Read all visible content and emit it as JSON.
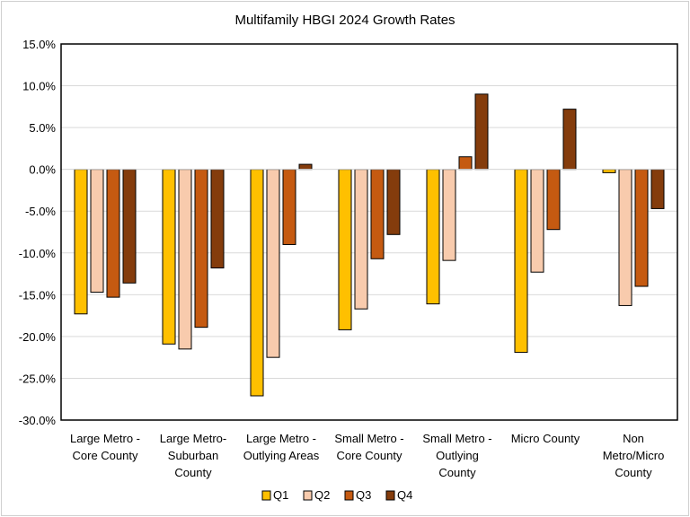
{
  "chart_data": {
    "type": "bar",
    "title": "Multifamily HBGI 2024 Growth Rates",
    "xlabel": "",
    "ylabel": "",
    "ylim": [
      -30,
      15
    ],
    "yticks": [
      15,
      10,
      5,
      0,
      -5,
      -10,
      -15,
      -20,
      -25,
      -30
    ],
    "ytick_labels": [
      "15.0%",
      "10.0%",
      "5.0%",
      "0.0%",
      "-5.0%",
      "-10.0%",
      "-15.0%",
      "-20.0%",
      "-25.0%",
      "-30.0%"
    ],
    "grid": true,
    "legend_position": "bottom",
    "categories": [
      [
        "Large Metro -",
        "Core County"
      ],
      [
        "Large Metro-",
        "Suburban",
        "County"
      ],
      [
        "Large Metro -",
        "Outlying Areas"
      ],
      [
        "Small Metro -",
        "Core County"
      ],
      [
        "Small Metro -",
        "Outlying",
        "County"
      ],
      [
        "Micro County"
      ],
      [
        "Non",
        "Metro/Micro",
        "County"
      ]
    ],
    "series": [
      {
        "name": "Q1",
        "color": "#FFC000",
        "values": [
          -17.3,
          -20.9,
          -27.1,
          -19.2,
          -16.1,
          -21.9,
          -0.4
        ]
      },
      {
        "name": "Q2",
        "color": "#F8CBAD",
        "values": [
          -14.7,
          -21.5,
          -22.5,
          -16.7,
          -10.9,
          -12.3,
          -16.3
        ]
      },
      {
        "name": "Q3",
        "color": "#C55A11",
        "values": [
          -15.3,
          -18.9,
          -9.0,
          -10.7,
          1.5,
          -7.2,
          -14.0
        ]
      },
      {
        "name": "Q4",
        "color": "#843C0C",
        "values": [
          -13.6,
          -11.8,
          0.6,
          -7.8,
          9.0,
          7.2,
          -4.7
        ]
      }
    ]
  }
}
